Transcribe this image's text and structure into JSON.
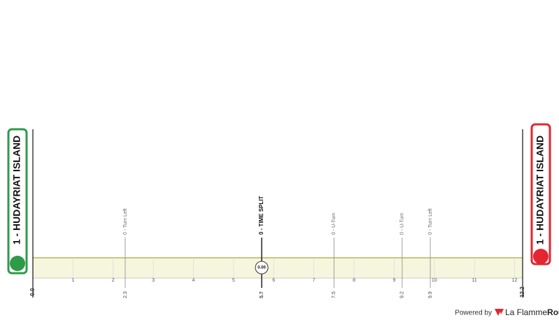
{
  "chart_data": {
    "type": "profile",
    "xlim": [
      0,
      12.2
    ],
    "xticks": [
      1,
      2,
      3,
      4,
      5,
      6,
      7,
      8,
      9,
      10,
      11,
      12
    ],
    "start": {
      "label": "1 - HUDAYRIAT ISLAND",
      "km": {
        "value": 0,
        "label": "0.0"
      }
    },
    "finish": {
      "label": "1 - HUDAYRIAT ISLAND",
      "km": 12.2
    },
    "points": [
      {
        "km": 2.3,
        "label": "0 - Turn Left"
      },
      {
        "km": 5.7,
        "label": "0 - TIME SPLIT",
        "icon": "0.00"
      },
      {
        "km": 7.5,
        "label": "0 - U-Turn"
      },
      {
        "km": 9.2,
        "label": "0 - U-Turn"
      },
      {
        "km": 9.9,
        "label": "0 - Turn Left"
      }
    ]
  },
  "footer": {
    "powered": "Powered by",
    "brand": "La Flamme",
    "brand_accent": "Rouge"
  }
}
